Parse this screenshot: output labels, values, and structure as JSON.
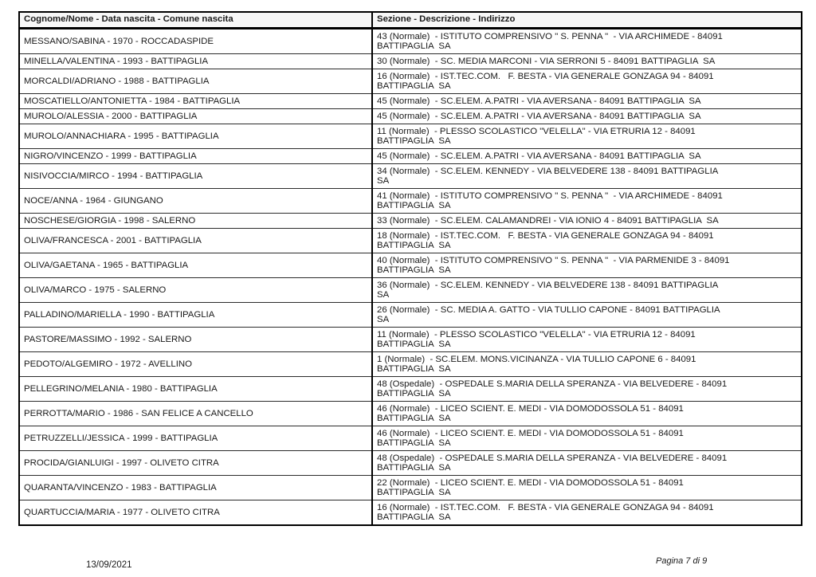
{
  "colors": {
    "text": "#1a1a1a",
    "border": "#000000",
    "page_background": "#ffffff"
  },
  "table": {
    "headers": {
      "person": "Cognome/Nome - Data nascita - Comune nascita",
      "section": "Sezione - Descrizione - Indirizzo"
    },
    "rows": [
      {
        "person": "MESSANO/SABINA - 1970 - ROCCADASPIDE",
        "section": "43 (Normale)  - ISTITUTO COMPRENSIVO \" S. PENNA \"  - VIA ARCHIMEDE - 84091\nBATTIPAGLIA  SA"
      },
      {
        "person": "MINELLA/VALENTINA - 1993 - BATTIPAGLIA",
        "section": "30 (Normale)  - SC. MEDIA MARCONI - VIA SERRONI 5 - 84091 BATTIPAGLIA  SA"
      },
      {
        "person": "MORCALDI/ADRIANO - 1988 - BATTIPAGLIA",
        "section": "16 (Normale)  - IST.TEC.COM.   F. BESTA - VIA GENERALE GONZAGA 94 - 84091\nBATTIPAGLIA  SA"
      },
      {
        "person": "MOSCATIELLO/ANTONIETTA - 1984 - BATTIPAGLIA",
        "section": "45 (Normale)  - SC.ELEM. A.PATRI - VIA AVERSANA - 84091 BATTIPAGLIA  SA"
      },
      {
        "person": "MUROLO/ALESSIA - 2000 - BATTIPAGLIA",
        "section": "45 (Normale)  - SC.ELEM. A.PATRI - VIA AVERSANA - 84091 BATTIPAGLIA  SA"
      },
      {
        "person": "MUROLO/ANNACHIARA - 1995 - BATTIPAGLIA",
        "section": "11 (Normale)  - PLESSO SCOLASTICO \"VELELLA\" - VIA ETRURIA 12 - 84091\nBATTIPAGLIA  SA"
      },
      {
        "person": "NIGRO/VINCENZO - 1999 - BATTIPAGLIA",
        "section": "45 (Normale)  - SC.ELEM. A.PATRI - VIA AVERSANA - 84091 BATTIPAGLIA  SA"
      },
      {
        "person": "NISIVOCCIA/MIRCO - 1994 - BATTIPAGLIA",
        "section": "34 (Normale)  - SC.ELEM. KENNEDY - VIA BELVEDERE 138 - 84091 BATTIPAGLIA\nSA"
      },
      {
        "person": "NOCE/ANNA - 1964 - GIUNGANO",
        "section": "41 (Normale)  - ISTITUTO COMPRENSIVO \" S. PENNA \"  - VIA ARCHIMEDE - 84091\nBATTIPAGLIA  SA"
      },
      {
        "person": "NOSCHESE/GIORGIA - 1998 - SALERNO",
        "section": "33 (Normale)  - SC.ELEM. CALAMANDREI - VIA IONIO 4 - 84091 BATTIPAGLIA  SA"
      },
      {
        "person": "OLIVA/FRANCESCA - 2001 - BATTIPAGLIA",
        "section": "18 (Normale)  - IST.TEC.COM.   F. BESTA - VIA GENERALE GONZAGA 94 - 84091\nBATTIPAGLIA  SA"
      },
      {
        "person": "OLIVA/GAETANA - 1965 - BATTIPAGLIA",
        "section": "40 (Normale)  - ISTITUTO COMPRENSIVO \" S. PENNA \"  - VIA PARMENIDE 3 - 84091\nBATTIPAGLIA  SA"
      },
      {
        "person": "OLIVA/MARCO - 1975 - SALERNO",
        "section": "36 (Normale)  - SC.ELEM. KENNEDY - VIA BELVEDERE 138 - 84091 BATTIPAGLIA\nSA"
      },
      {
        "person": "PALLADINO/MARIELLA - 1990 - BATTIPAGLIA",
        "section": "26 (Normale)  - SC. MEDIA A. GATTO - VIA TULLIO CAPONE - 84091 BATTIPAGLIA\nSA"
      },
      {
        "person": "PASTORE/MASSIMO - 1992 - SALERNO",
        "section": "11 (Normale)  - PLESSO SCOLASTICO \"VELELLA\" - VIA ETRURIA 12 - 84091\nBATTIPAGLIA  SA"
      },
      {
        "person": "PEDOTO/ALGEMIRO - 1972 - AVELLINO",
        "section": "1 (Normale)  - SC.ELEM. MONS.VICINANZA - VIA TULLIO CAPONE 6 - 84091\nBATTIPAGLIA  SA"
      },
      {
        "person": "PELLEGRINO/MELANIA - 1980 - BATTIPAGLIA",
        "section": "48 (Ospedale)  - OSPEDALE S.MARIA DELLA SPERANZA - VIA BELVEDERE - 84091\nBATTIPAGLIA  SA"
      },
      {
        "person": "PERROTTA/MARIO - 1986 - SAN FELICE A CANCELLO",
        "section": "46 (Normale)  - LICEO SCIENT. E. MEDI - VIA DOMODOSSOLA 51 - 84091\nBATTIPAGLIA  SA"
      },
      {
        "person": "PETRUZZELLI/JESSICA - 1999 - BATTIPAGLIA",
        "section": "46 (Normale)  - LICEO SCIENT. E. MEDI - VIA DOMODOSSOLA 51 - 84091\nBATTIPAGLIA  SA"
      },
      {
        "person": "PROCIDA/GIANLUIGI - 1997 - OLIVETO CITRA",
        "section": "48 (Ospedale)  - OSPEDALE S.MARIA DELLA SPERANZA - VIA BELVEDERE - 84091\nBATTIPAGLIA  SA"
      },
      {
        "person": "QUARANTA/VINCENZO - 1983 - BATTIPAGLIA",
        "section": "22 (Normale)  - LICEO SCIENT. E. MEDI - VIA DOMODOSSOLA 51 - 84091\nBATTIPAGLIA  SA"
      },
      {
        "person": "QUARTUCCIA/MARIA - 1977 - OLIVETO CITRA",
        "section": "16 (Normale)  - IST.TEC.COM.   F. BESTA - VIA GENERALE GONZAGA 94 - 84091\nBATTIPAGLIA  SA"
      }
    ]
  },
  "footer": {
    "date": "13/09/2021",
    "page": "Pagina 7 di 9"
  }
}
